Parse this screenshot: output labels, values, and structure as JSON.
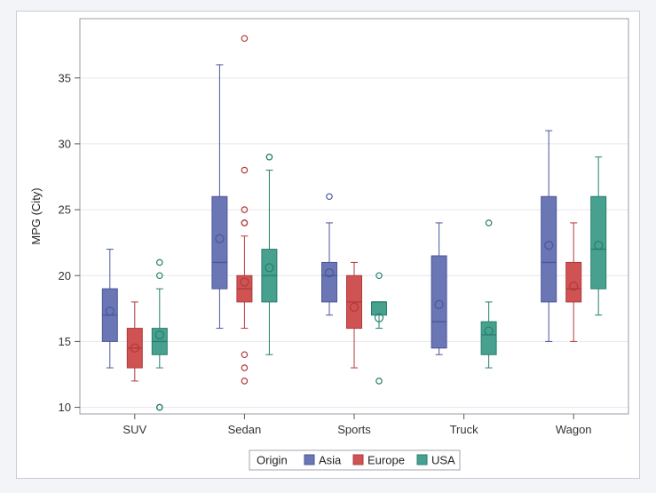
{
  "chart_data": {
    "type": "box",
    "title": "",
    "xlabel": "",
    "ylabel": "MPG (City)",
    "ylim": [
      9.5,
      39.5
    ],
    "yticks": [
      10,
      15,
      20,
      25,
      30,
      35
    ],
    "grid": true,
    "categories": [
      "SUV",
      "Sedan",
      "Sports",
      "Truck",
      "Wagon"
    ],
    "legend": {
      "title": "Origin",
      "placement": "bottom-center",
      "entries": [
        "Asia",
        "Europe",
        "USA"
      ]
    },
    "series": [
      {
        "name": "Asia",
        "fill": "#6b76b4",
        "stroke": "#4b569c",
        "boxes": [
          {
            "category": "SUV",
            "min": 13,
            "q1": 15,
            "median": 17,
            "q3": 19,
            "max": 22,
            "mean": 17.3,
            "outliers": []
          },
          {
            "category": "Sedan",
            "min": 16,
            "q1": 19,
            "median": 21,
            "q3": 26,
            "max": 36,
            "mean": 22.8,
            "outliers": []
          },
          {
            "category": "Sports",
            "min": 17,
            "q1": 18,
            "median": 20,
            "q3": 21,
            "max": 24,
            "mean": 20.2,
            "outliers": [
              26
            ]
          },
          {
            "category": "Truck",
            "min": 14,
            "q1": 14.5,
            "median": 16.5,
            "q3": 21.5,
            "max": 24,
            "mean": 17.8,
            "outliers": []
          },
          {
            "category": "Wagon",
            "min": 15,
            "q1": 18,
            "median": 21,
            "q3": 26,
            "max": 31,
            "mean": 22.3,
            "outliers": []
          }
        ]
      },
      {
        "name": "Europe",
        "fill": "#d05354",
        "stroke": "#b03a3b",
        "boxes": [
          {
            "category": "SUV",
            "min": 12,
            "q1": 13,
            "median": 14.5,
            "q3": 16,
            "max": 18,
            "mean": 14.5,
            "outliers": []
          },
          {
            "category": "Sedan",
            "min": 16,
            "q1": 18,
            "median": 19,
            "q3": 20,
            "max": 23,
            "mean": 19.5,
            "outliers": [
              12,
              13,
              14,
              24,
              24,
              25,
              28,
              38
            ]
          },
          {
            "category": "Sports",
            "min": 13,
            "q1": 16,
            "median": 18,
            "q3": 20,
            "max": 21,
            "mean": 17.6,
            "outliers": []
          },
          {
            "category": "Wagon",
            "min": 15,
            "q1": 18,
            "median": 19,
            "q3": 21,
            "max": 24,
            "mean": 19.2,
            "outliers": []
          }
        ]
      },
      {
        "name": "USA",
        "fill": "#48a18f",
        "stroke": "#267f6d",
        "boxes": [
          {
            "category": "SUV",
            "min": 13,
            "q1": 14,
            "median": 15,
            "q3": 16,
            "max": 19,
            "mean": 15.5,
            "outliers": [
              10,
              10,
              20,
              21
            ]
          },
          {
            "category": "Sedan",
            "min": 14,
            "q1": 18,
            "median": 20,
            "q3": 22,
            "max": 28,
            "mean": 20.6,
            "outliers": [
              29,
              29
            ]
          },
          {
            "category": "Sports",
            "min": 16,
            "q1": 17,
            "median": 18,
            "q3": 18,
            "max": 18,
            "mean": 16.8,
            "outliers": [
              12,
              20
            ]
          },
          {
            "category": "Truck",
            "min": 13,
            "q1": 14,
            "median": 15.5,
            "q3": 16.5,
            "max": 18,
            "mean": 15.8,
            "outliers": [
              24
            ]
          },
          {
            "category": "Wagon",
            "min": 17,
            "q1": 19,
            "median": 22,
            "q3": 26,
            "max": 29,
            "mean": 22.3,
            "outliers": []
          }
        ]
      }
    ]
  }
}
